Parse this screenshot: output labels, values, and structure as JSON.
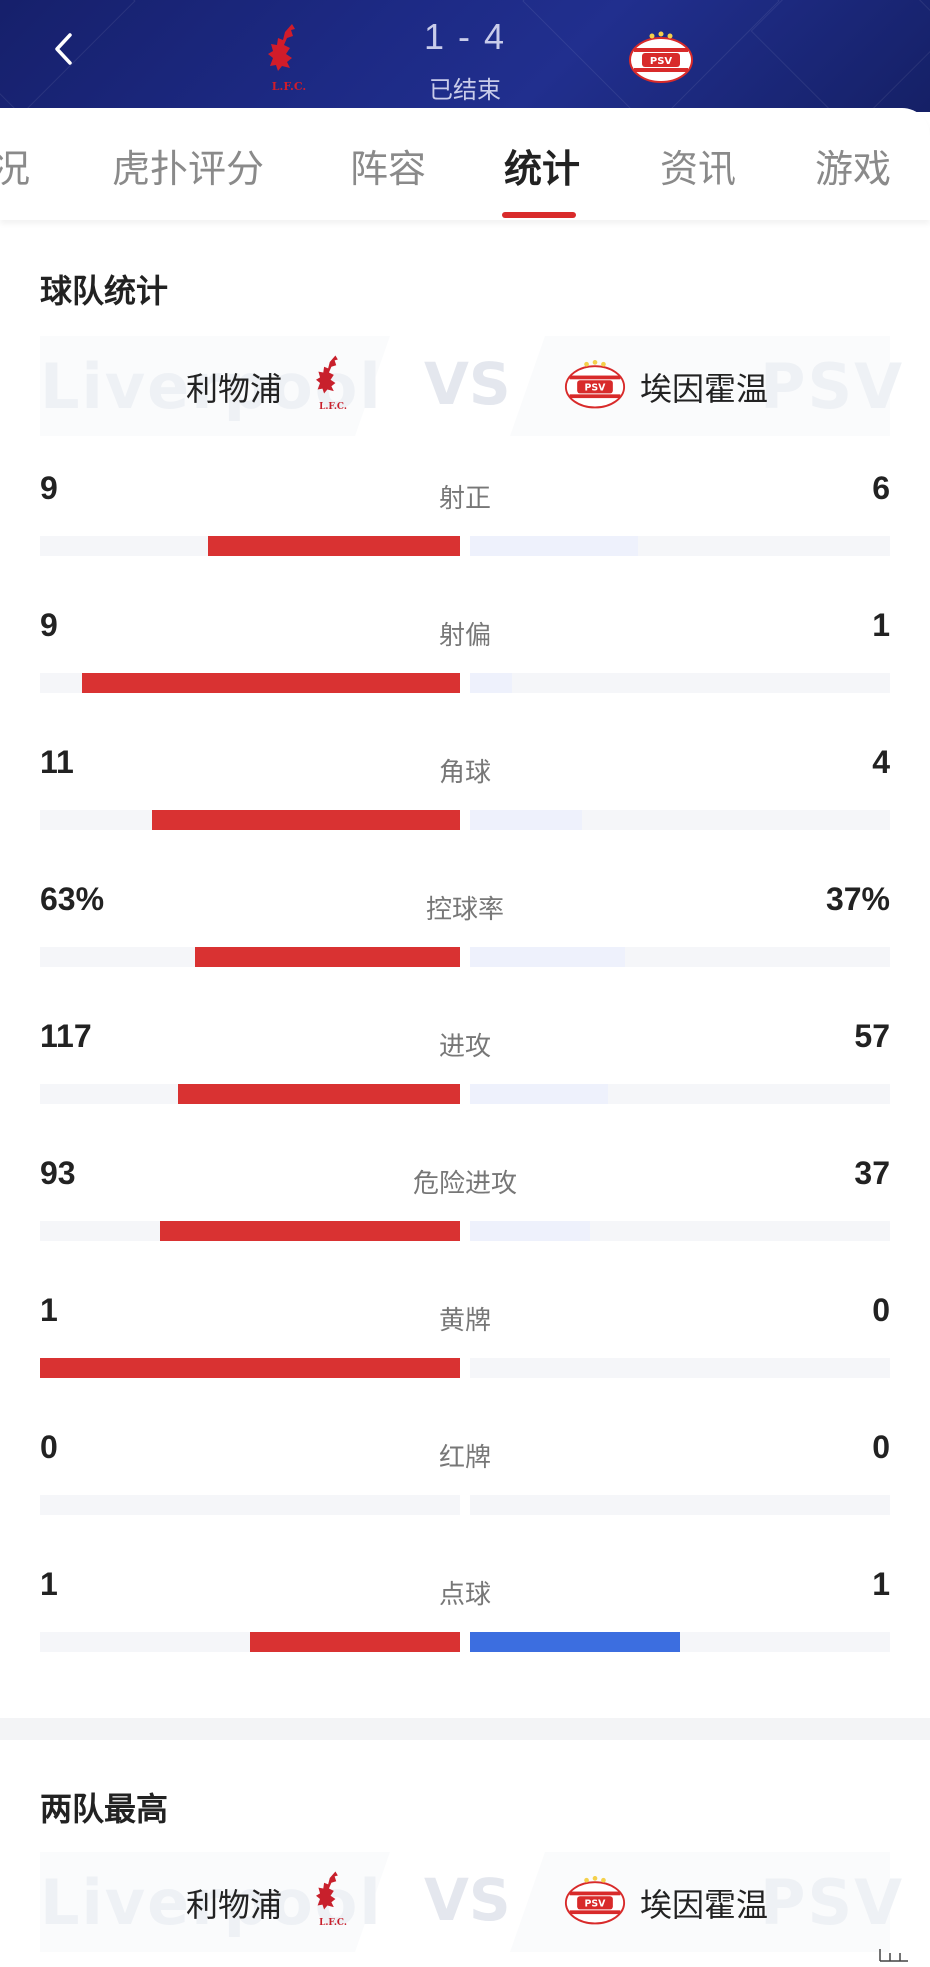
{
  "header": {
    "score": "1 - 4",
    "status": "已结束",
    "home_crest": "liverpool-crest",
    "away_crest": "psv-crest",
    "back_icon": "chevron-left-icon",
    "bg_color": "#1d2a85"
  },
  "tabs": [
    {
      "label": "况",
      "active": false
    },
    {
      "label": "虎扑评分",
      "active": false
    },
    {
      "label": "阵容",
      "active": false
    },
    {
      "label": "统计",
      "active": true
    },
    {
      "label": "资讯",
      "active": false
    },
    {
      "label": "游戏",
      "active": false
    }
  ],
  "team_stats": {
    "title": "球队统计",
    "home": {
      "name": "利物浦",
      "watermark": "Liverpool"
    },
    "away": {
      "name": "埃因霍温",
      "watermark": "PSV"
    },
    "vs": "VS",
    "colors": {
      "home": "#d93232",
      "away_light": "#eef1fc",
      "away_dark": "#3c6ee0"
    },
    "rows": [
      {
        "label": "射正",
        "home": "9",
        "away": "6",
        "home_frac": 0.6,
        "away_frac": 0.4,
        "away_strong": false
      },
      {
        "label": "射偏",
        "home": "9",
        "away": "1",
        "home_frac": 0.9,
        "away_frac": 0.1,
        "away_strong": false
      },
      {
        "label": "角球",
        "home": "11",
        "away": "4",
        "home_frac": 0.733,
        "away_frac": 0.267,
        "away_strong": false
      },
      {
        "label": "控球率",
        "home": "63%",
        "away": "37%",
        "home_frac": 0.63,
        "away_frac": 0.37,
        "away_strong": false
      },
      {
        "label": "进攻",
        "home": "117",
        "away": "57",
        "home_frac": 0.672,
        "away_frac": 0.328,
        "away_strong": false
      },
      {
        "label": "危险进攻",
        "home": "93",
        "away": "37",
        "home_frac": 0.715,
        "away_frac": 0.285,
        "away_strong": false
      },
      {
        "label": "黄牌",
        "home": "1",
        "away": "0",
        "home_frac": 1.0,
        "away_frac": 0.0,
        "away_strong": false
      },
      {
        "label": "红牌",
        "home": "0",
        "away": "0",
        "home_frac": 0.0,
        "away_frac": 0.0,
        "away_strong": false
      },
      {
        "label": "点球",
        "home": "1",
        "away": "1",
        "home_frac": 0.5,
        "away_frac": 0.5,
        "away_strong": true
      }
    ]
  },
  "top_players": {
    "title": "两队最高",
    "home": {
      "name": "利物浦",
      "watermark": "Liverpool"
    },
    "away": {
      "name": "埃因霍温",
      "watermark": "PSV"
    },
    "vs": "VS"
  }
}
